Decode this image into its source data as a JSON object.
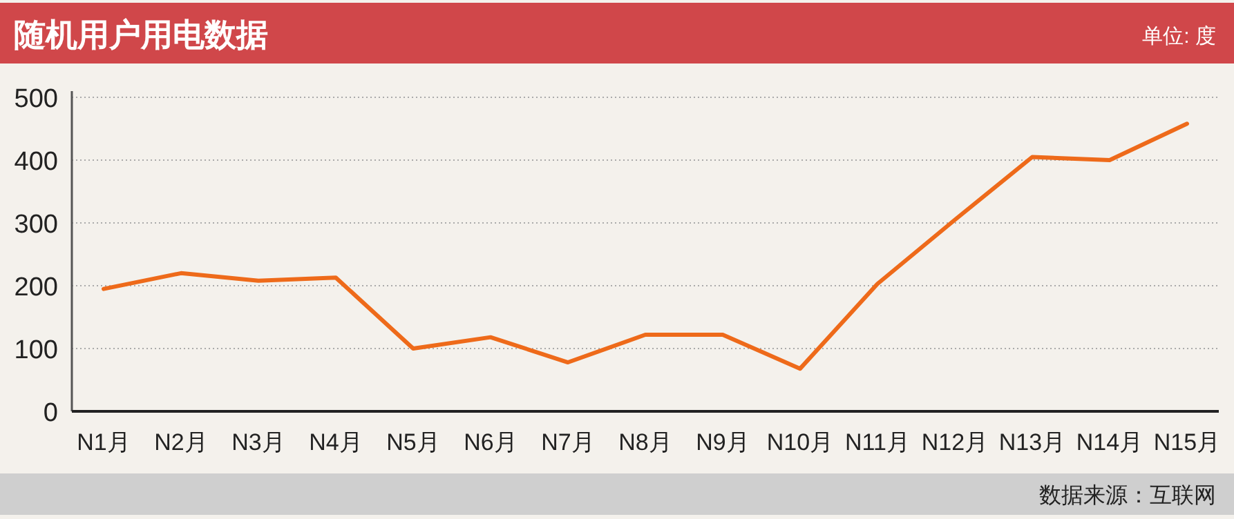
{
  "chart_data": {
    "type": "line",
    "title": "随机用户用电数据",
    "ylabel": "单位: 度",
    "categories": [
      "N1月",
      "N2月",
      "N3月",
      "N4月",
      "N5月",
      "N6月",
      "N7月",
      "N8月",
      "N9月",
      "N10月",
      "N11月",
      "N12月",
      "N13月",
      "N14月",
      "N15月"
    ],
    "series": [
      {
        "color": "#ee6a1a",
        "values": [
          195,
          220,
          208,
          213,
          100,
          118,
          78,
          122,
          122,
          68,
          203,
          305,
          405,
          400,
          458
        ]
      }
    ],
    "ylim": [
      0,
      510
    ],
    "yticks": [
      0,
      100,
      200,
      300,
      400,
      500
    ],
    "grid": "y",
    "annotations": [
      "数据来源：互联网"
    ]
  }
}
